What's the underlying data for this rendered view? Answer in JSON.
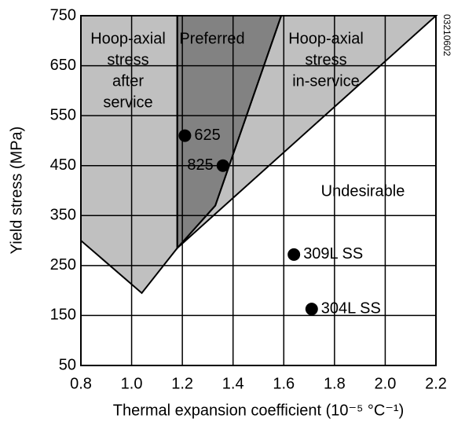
{
  "chart_data": {
    "type": "scatter",
    "xlabel": "Thermal expansion coefficient (10⁻⁵ °C⁻¹)",
    "ylabel": "Yield stress (MPa)",
    "xlim": [
      0.8,
      2.2
    ],
    "xticks": [
      0.8,
      {
        "value": 1,
        "label": "1.0"
      },
      1.2,
      1.4,
      1.6,
      1.8,
      {
        "value": 2,
        "label": "2.0"
      },
      2.2
    ],
    "ylim": [
      50,
      750
    ],
    "yticks": [
      50,
      150,
      250,
      350,
      450,
      550,
      650,
      750
    ],
    "grid": true,
    "regions": [
      {
        "label": [
          "Hoop-axial",
          "stress",
          "after",
          "service"
        ],
        "color": "#c0c0c0",
        "x": [
          0.8,
          1.18,
          1.18,
          1.04,
          0.8
        ],
        "y": [
          750,
          750,
          285,
          195,
          300
        ]
      },
      {
        "label": [
          "Preferred"
        ],
        "color": "#828282",
        "x": [
          1.18,
          1.59,
          1.33,
          1.18
        ],
        "y": [
          750,
          750,
          370,
          285
        ]
      },
      {
        "label": [
          "Hoop-axial",
          "stress",
          "in-service"
        ],
        "color": "#c0c0c0",
        "x": [
          1.59,
          2.2,
          1.18,
          1.33
        ],
        "y": [
          750,
          750,
          285,
          370
        ]
      }
    ],
    "points": [
      {
        "label": "625",
        "x": 1.21,
        "y": 510
      },
      {
        "label": "825",
        "x": 1.36,
        "y": 450
      },
      {
        "label": "309L SS",
        "x": 1.64,
        "y": 272
      },
      {
        "label": "304L SS",
        "x": 1.71,
        "y": 163
      }
    ],
    "color": "#000000",
    "annotations": [
      "Undesirable"
    ],
    "figure_code": "03210602"
  }
}
